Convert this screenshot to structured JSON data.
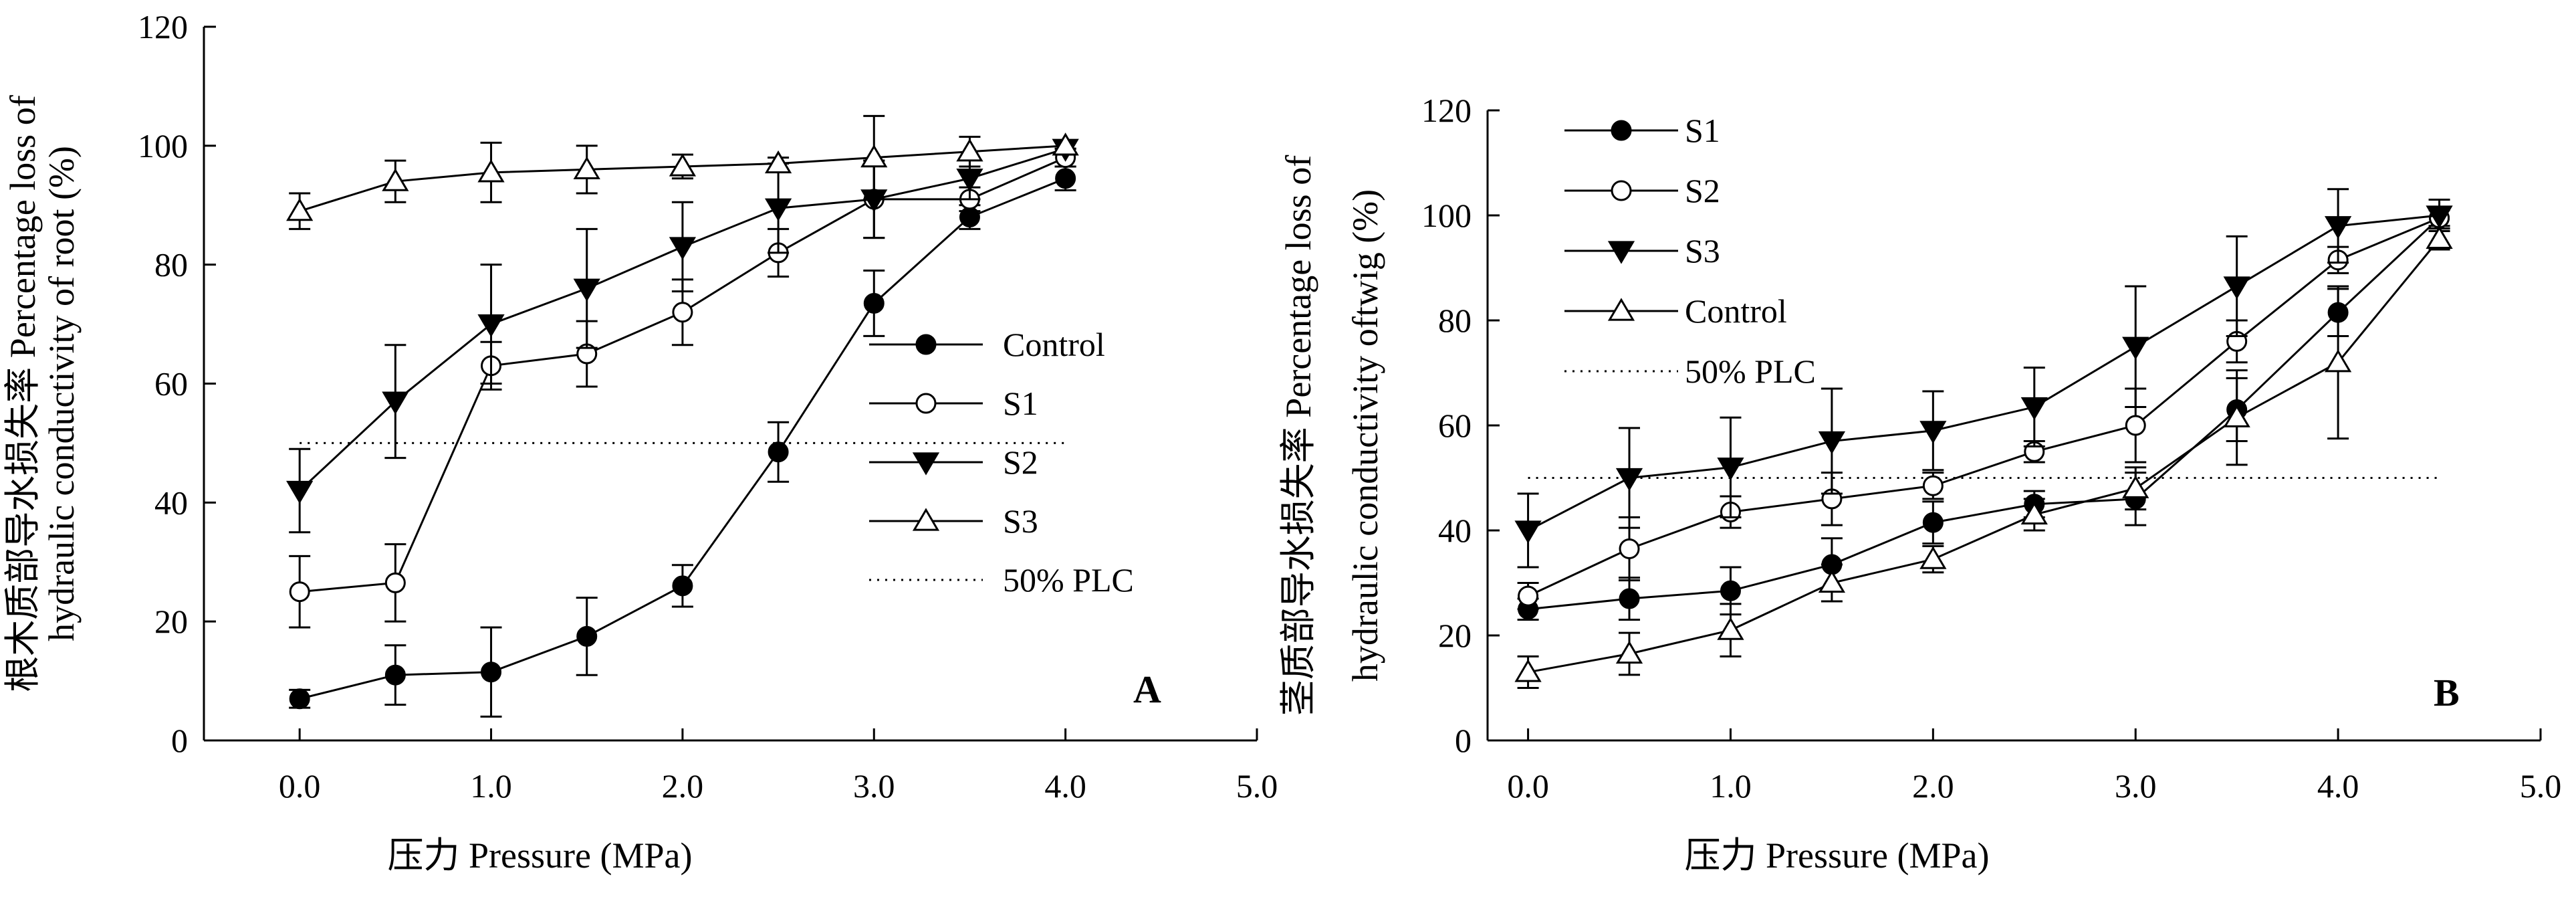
{
  "chart_data": [
    {
      "panel": "A",
      "type": "line",
      "panel_label": "A",
      "xlabel": "压力 Pressure (MPa)",
      "ylabel_line1": "根木质部导水损失率  Percentage loss of",
      "ylabel_line2": "hydraulic conductivity of root (%)",
      "xlim": [
        -0.5,
        5.0
      ],
      "ylim": [
        0,
        120
      ],
      "xticks": [
        0.0,
        1.0,
        2.0,
        3.0,
        4.0,
        5.0
      ],
      "xtick_labels": [
        "0.0",
        "1.0",
        "2.0",
        "3.0",
        "4.0",
        "5.0"
      ],
      "yticks": [
        0,
        20,
        40,
        60,
        80,
        100,
        120
      ],
      "ytick_labels": [
        "0",
        "20",
        "40",
        "60",
        "80",
        "100",
        "120"
      ],
      "legend_position": "center-right",
      "x": [
        0.0,
        0.5,
        1.0,
        1.5,
        2.0,
        2.5,
        3.0,
        3.5,
        4.0
      ],
      "series": [
        {
          "name": "Control",
          "marker": "filled-circle",
          "values": [
            7,
            11,
            11.5,
            17.5,
            26,
            48.5,
            73.5,
            88,
            94.5
          ],
          "errors": [
            1.5,
            5,
            7.5,
            6.5,
            3.5,
            5,
            5.5,
            2,
            2
          ]
        },
        {
          "name": "S1",
          "marker": "open-circle",
          "values": [
            25,
            26.5,
            63,
            65,
            72,
            82,
            91,
            91,
            98
          ],
          "errors": [
            6,
            6.5,
            4,
            5.5,
            5.5,
            4,
            6.5,
            2,
            1.5
          ]
        },
        {
          "name": "S2",
          "marker": "filled-triangle-down",
          "values": [
            42,
            57,
            70,
            76,
            83,
            89.5,
            91,
            94.5,
            99.5
          ],
          "errors": [
            7,
            9.5,
            10,
            10,
            7.5,
            7.5,
            6.5,
            3.5,
            1
          ]
        },
        {
          "name": "S3",
          "marker": "open-triangle-up",
          "values": [
            89,
            94,
            95.5,
            96,
            96.5,
            97,
            98,
            99,
            100
          ],
          "errors": [
            3,
            3.5,
            5,
            4,
            2,
            1,
            7,
            2.5,
            0.5
          ]
        }
      ],
      "reference_line": {
        "name": "50% PLC",
        "y": 50,
        "x_range": [
          0.0,
          4.0
        ]
      }
    },
    {
      "panel": "B",
      "type": "line",
      "panel_label": "B",
      "xlabel": "压力 Pressure (MPa)",
      "ylabel_line1": "茎质部导水损失率  Percentage loss of",
      "ylabel_line2": "hydraulic conductivity oftwig  (%)",
      "xlim": [
        -0.2,
        5.0
      ],
      "ylim": [
        0,
        120
      ],
      "xticks": [
        0.0,
        1.0,
        2.0,
        3.0,
        4.0,
        5.0
      ],
      "xtick_labels": [
        "0.0",
        "1.0",
        "2.0",
        "3.0",
        "4.0",
        "5.0"
      ],
      "yticks": [
        0,
        20,
        40,
        60,
        80,
        100,
        120
      ],
      "ytick_labels": [
        "0",
        "20",
        "40",
        "60",
        "80",
        "100",
        "120"
      ],
      "legend_position": "top-left",
      "x": [
        0.0,
        0.5,
        1.0,
        1.5,
        2.0,
        2.5,
        3.0,
        3.5,
        4.0,
        4.5
      ],
      "series": [
        {
          "name": "S1",
          "marker": "filled-circle",
          "values": [
            25,
            27,
            28.5,
            33.5,
            41.5,
            45,
            46,
            63,
            81.5,
            99.5
          ],
          "errors": [
            2,
            4,
            4.5,
            5,
            4,
            2.5,
            5,
            6,
            4.5,
            2
          ]
        },
        {
          "name": "S2",
          "marker": "open-circle",
          "values": [
            27.5,
            36.5,
            43.5,
            46,
            48.5,
            55,
            60,
            76,
            91.5,
            99.5
          ],
          "errors": [
            2.5,
            6,
            3,
            5,
            2.5,
            2,
            7,
            4,
            2.5,
            1.5
          ]
        },
        {
          "name": "S3",
          "marker": "filled-triangle-down",
          "values": [
            40,
            50,
            52,
            57,
            59,
            63.5,
            75,
            86.5,
            98,
            100
          ],
          "errors": [
            7,
            9.5,
            9.5,
            10,
            7.5,
            7.5,
            11.5,
            9.5,
            7,
            3
          ]
        },
        {
          "name": "Control",
          "marker": "open-triangle-up",
          "values": [
            13,
            16.5,
            21,
            30,
            34.5,
            43,
            48,
            61.5,
            72,
            95.5
          ],
          "errors": [
            3,
            4,
            5,
            3.5,
            2.5,
            3,
            4,
            9,
            14.5,
            2
          ]
        }
      ],
      "reference_line": {
        "name": "50% PLC",
        "y": 50,
        "x_range": [
          0.0,
          4.5
        ]
      }
    }
  ]
}
